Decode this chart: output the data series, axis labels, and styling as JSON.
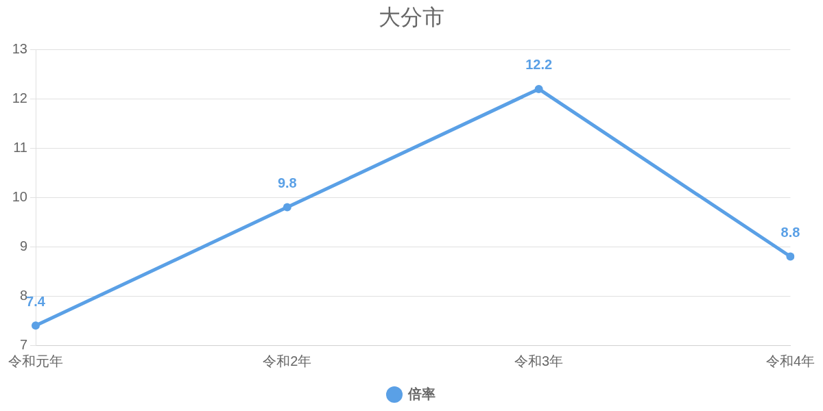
{
  "chart_data": {
    "type": "line",
    "title": "大分市",
    "categories": [
      "令和元年",
      "令和2年",
      "令和3年",
      "令和4年"
    ],
    "series": [
      {
        "name": "倍率",
        "color": "#5aa0e6",
        "values": [
          7.4,
          9.8,
          12.2,
          8.8
        ]
      }
    ],
    "ylim": [
      7,
      13
    ],
    "yticks": [
      7,
      8,
      9,
      10,
      11,
      12,
      13
    ],
    "grid": "y",
    "legend": "bottom",
    "marker": "circle",
    "line_style": "solid",
    "data_labels": true
  }
}
